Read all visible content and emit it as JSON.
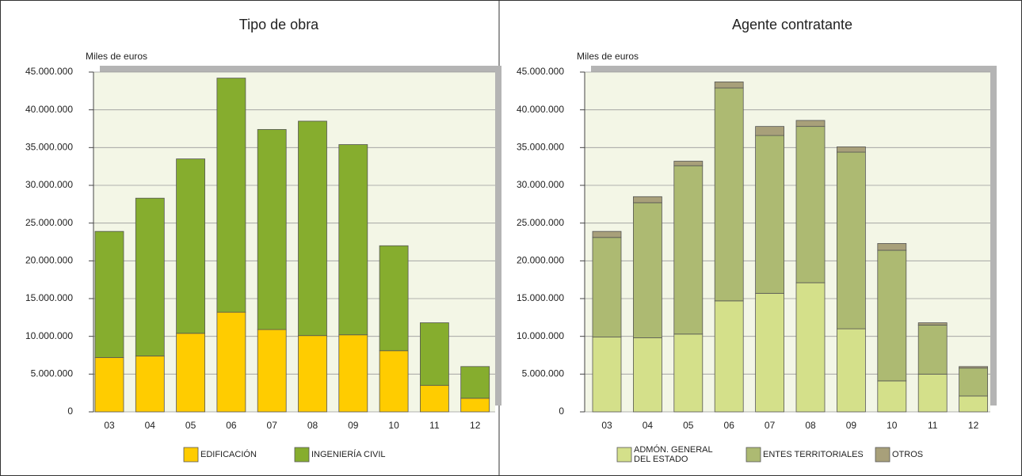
{
  "chart_data": [
    {
      "type": "bar",
      "stacked": true,
      "title": "Tipo de obra",
      "y_label": "Miles de euros",
      "categories": [
        "03",
        "04",
        "05",
        "06",
        "07",
        "08",
        "09",
        "10",
        "11",
        "12"
      ],
      "series": [
        {
          "name": "EDIFICACIÓN",
          "color": "#ffcc00",
          "values": [
            7200000,
            7400000,
            10400000,
            13200000,
            10900000,
            10100000,
            10200000,
            8100000,
            3500000,
            1800000
          ]
        },
        {
          "name": "INGENIERÍA  CIVIL",
          "color": "#86ad2e",
          "values": [
            16700000,
            20900000,
            23100000,
            31000000,
            26500000,
            28400000,
            25200000,
            13900000,
            8300000,
            4200000
          ]
        }
      ],
      "ylim": [
        0,
        45000000
      ],
      "yticks": [
        0,
        {
          "value": 5000000,
          "label": "5.000.000"
        },
        {
          "value": 10000000,
          "label": "10.000.000"
        },
        {
          "value": 15000000,
          "label": "15.000.000"
        },
        {
          "value": 20000000,
          "label": "20.000.000"
        },
        {
          "value": 25000000,
          "label": "25.000.000"
        },
        {
          "value": 30000000,
          "label": "30.000.000"
        },
        {
          "value": 35000000,
          "label": "35.000.000"
        },
        {
          "value": 40000000,
          "label": "40.000.000"
        },
        {
          "value": 45000000,
          "label": "45.000.000"
        }
      ],
      "grid": true
    },
    {
      "type": "bar",
      "stacked": true,
      "title": "Agente contratante",
      "y_label": "Miles de euros",
      "categories": [
        "03",
        "04",
        "05",
        "06",
        "07",
        "08",
        "09",
        "10",
        "11",
        "12"
      ],
      "series": [
        {
          "name": "ADMÓN. GENERAL DEL ESTADO",
          "color": "#d4e08a",
          "values": [
            9900000,
            9800000,
            10300000,
            14700000,
            15700000,
            17100000,
            11000000,
            4100000,
            5000000,
            2100000
          ]
        },
        {
          "name": "ENTES TERRITORIALES",
          "color": "#adba72",
          "values": [
            13200000,
            17900000,
            22300000,
            28200000,
            20900000,
            20700000,
            23400000,
            17300000,
            6500000,
            3700000
          ]
        },
        {
          "name": "OTROS",
          "color": "#a8a07a",
          "values": [
            800000,
            800000,
            600000,
            800000,
            1200000,
            800000,
            700000,
            900000,
            300000,
            200000
          ]
        }
      ],
      "ylim": [
        0,
        45000000
      ],
      "yticks": [
        0,
        {
          "value": 5000000,
          "label": "5.000.000"
        },
        {
          "value": 10000000,
          "label": "10.000.000"
        },
        {
          "value": 15000000,
          "label": "15.000.000"
        },
        {
          "value": 20000000,
          "label": "20.000.000"
        },
        {
          "value": 25000000,
          "label": "25.000.000"
        },
        {
          "value": 30000000,
          "label": "30.000.000"
        },
        {
          "value": 35000000,
          "label": "35.000.000"
        },
        {
          "value": 40000000,
          "label": "40.000.000"
        },
        {
          "value": 45000000,
          "label": "45.000.000"
        }
      ],
      "grid": true
    }
  ]
}
